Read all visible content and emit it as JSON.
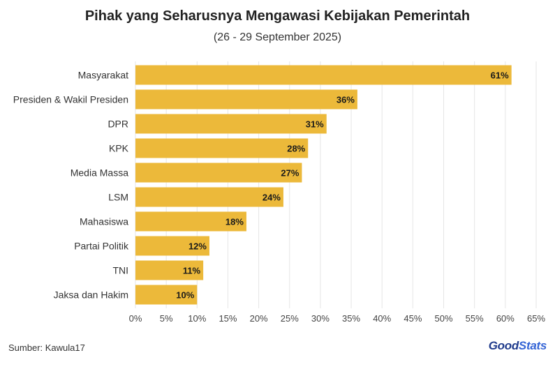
{
  "header": {
    "title": "Pihak yang Seharusnya Mengawasi Kebijakan Pemerintah",
    "subtitle": "(26 - 29 September 2025)"
  },
  "footer": {
    "source": "Sumber: Kawula17",
    "logo_part1": "Good",
    "logo_part2": "Stats"
  },
  "colors": {
    "bar": "#ecb93a",
    "grid": "#e6e6e6",
    "logo_dark": "#1f3b8c",
    "logo_light": "#3565d6"
  },
  "chart_data": {
    "type": "bar",
    "orientation": "horizontal",
    "categories": [
      "Masyarakat",
      "Presiden & Wakil Presiden",
      "DPR",
      "KPK",
      "Media Massa",
      "LSM",
      "Mahasiswa",
      "Partai Politik",
      "TNI",
      "Jaksa dan Hakim"
    ],
    "values": [
      61,
      36,
      31,
      28,
      27,
      24,
      18,
      12,
      11,
      10
    ],
    "value_labels": [
      "61%",
      "36%",
      "31%",
      "28%",
      "27%",
      "24%",
      "18%",
      "12%",
      "11%",
      "10%"
    ],
    "x_ticks": [
      0,
      5,
      10,
      15,
      20,
      25,
      30,
      35,
      40,
      45,
      50,
      55,
      60,
      65
    ],
    "x_tick_labels": [
      "0%",
      "5%",
      "10%",
      "15%",
      "20%",
      "25%",
      "30%",
      "35%",
      "40%",
      "45%",
      "50%",
      "55%",
      "60%",
      "65%"
    ],
    "xlim": [
      0,
      65
    ],
    "grid": true,
    "legend": "none"
  }
}
